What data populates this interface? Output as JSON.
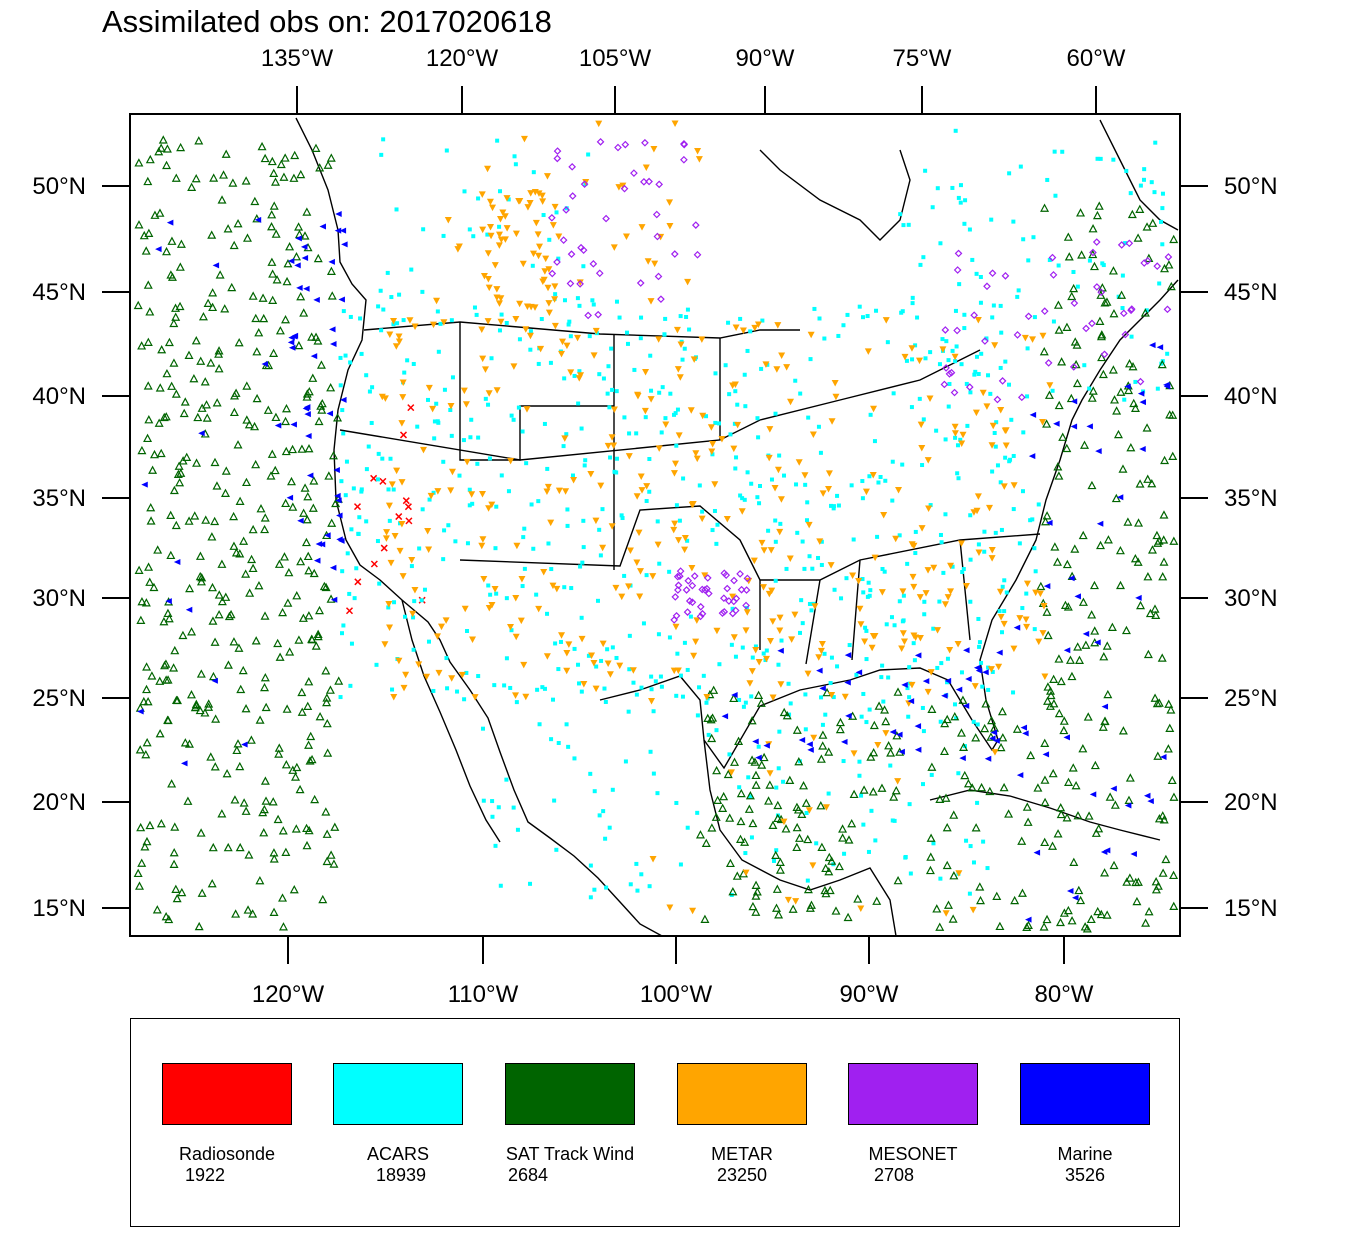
{
  "title": "Assimilated obs on: 2017020618",
  "map": {
    "top_lon_labels": [
      "135°W",
      "120°W",
      "105°W",
      "90°W",
      "75°W",
      "60°W"
    ],
    "bottom_lon_labels": [
      "120°W",
      "110°W",
      "100°W",
      "90°W",
      "80°W"
    ],
    "lat_labels": [
      "50°N",
      "45°N",
      "40°N",
      "35°N",
      "30°N",
      "25°N",
      "20°N",
      "15°N"
    ]
  },
  "legend": {
    "items": [
      {
        "name": "Radiosonde",
        "count": "1922",
        "color": "#ff0000",
        "marker": "cross"
      },
      {
        "name": "ACARS",
        "count": "18939",
        "color": "#00ffff",
        "marker": "square"
      },
      {
        "name": "SAT Track Wind",
        "count": "2684",
        "color": "#006400",
        "marker": "triangle-up-open"
      },
      {
        "name": "METAR",
        "count": "23250",
        "color": "#ffa500",
        "marker": "triangle-down"
      },
      {
        "name": "MESONET",
        "count": "2708",
        "color": "#a020f0",
        "marker": "diamond"
      },
      {
        "name": "Marine",
        "count": "3526",
        "color": "#0000ff",
        "marker": "triangle-left"
      }
    ]
  }
}
